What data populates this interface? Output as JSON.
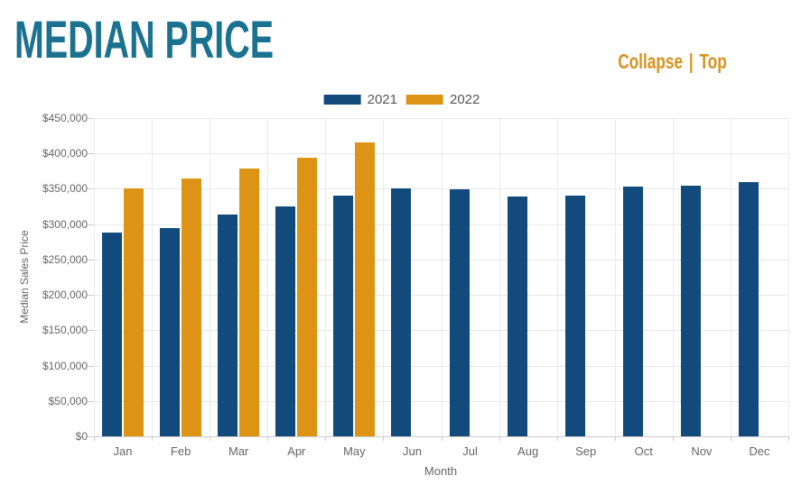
{
  "header": {
    "title": "MEDIAN PRICE",
    "links": {
      "collapse": "Collapse",
      "separator": "|",
      "top": "Top"
    }
  },
  "colors": {
    "title": "#1A7190",
    "link": "#D9921F",
    "series_2021": "#114A7B",
    "series_2022": "#DD9414",
    "grid": "#E7E7E7",
    "axis_line": "#CCCCCC",
    "tick_text": "#666666",
    "legend_text": "#555555"
  },
  "chart_data": {
    "type": "bar",
    "title": "MEDIAN PRICE",
    "xlabel": "Month",
    "ylabel": "Median Sales Price",
    "categories": [
      "Jan",
      "Feb",
      "Mar",
      "Apr",
      "May",
      "Jun",
      "Jul",
      "Aug",
      "Sep",
      "Oct",
      "Nov",
      "Dec"
    ],
    "series": [
      {
        "name": "2021",
        "color": "#114A7B",
        "values": [
          288000,
          295000,
          314000,
          325000,
          340000,
          350000,
          349000,
          339000,
          340000,
          353000,
          355000,
          360000
        ]
      },
      {
        "name": "2022",
        "color": "#DD9414",
        "values": [
          351000,
          365000,
          379000,
          394000,
          415000,
          null,
          null,
          null,
          null,
          null,
          null,
          null
        ]
      }
    ],
    "ylim": [
      0,
      450000
    ],
    "yticks": [
      {
        "value": 0,
        "label": "$0"
      },
      {
        "value": 50000,
        "label": "$50,000"
      },
      {
        "value": 100000,
        "label": "$100,000"
      },
      {
        "value": 150000,
        "label": "$150,000"
      },
      {
        "value": 200000,
        "label": "$200,000"
      },
      {
        "value": 250000,
        "label": "$250,000"
      },
      {
        "value": 300000,
        "label": "$300,000"
      },
      {
        "value": 350000,
        "label": "$350,000"
      },
      {
        "value": 400000,
        "label": "$400,000"
      },
      {
        "value": 450000,
        "label": "$450,000"
      }
    ],
    "grid": true,
    "legend_position": "top-center"
  }
}
